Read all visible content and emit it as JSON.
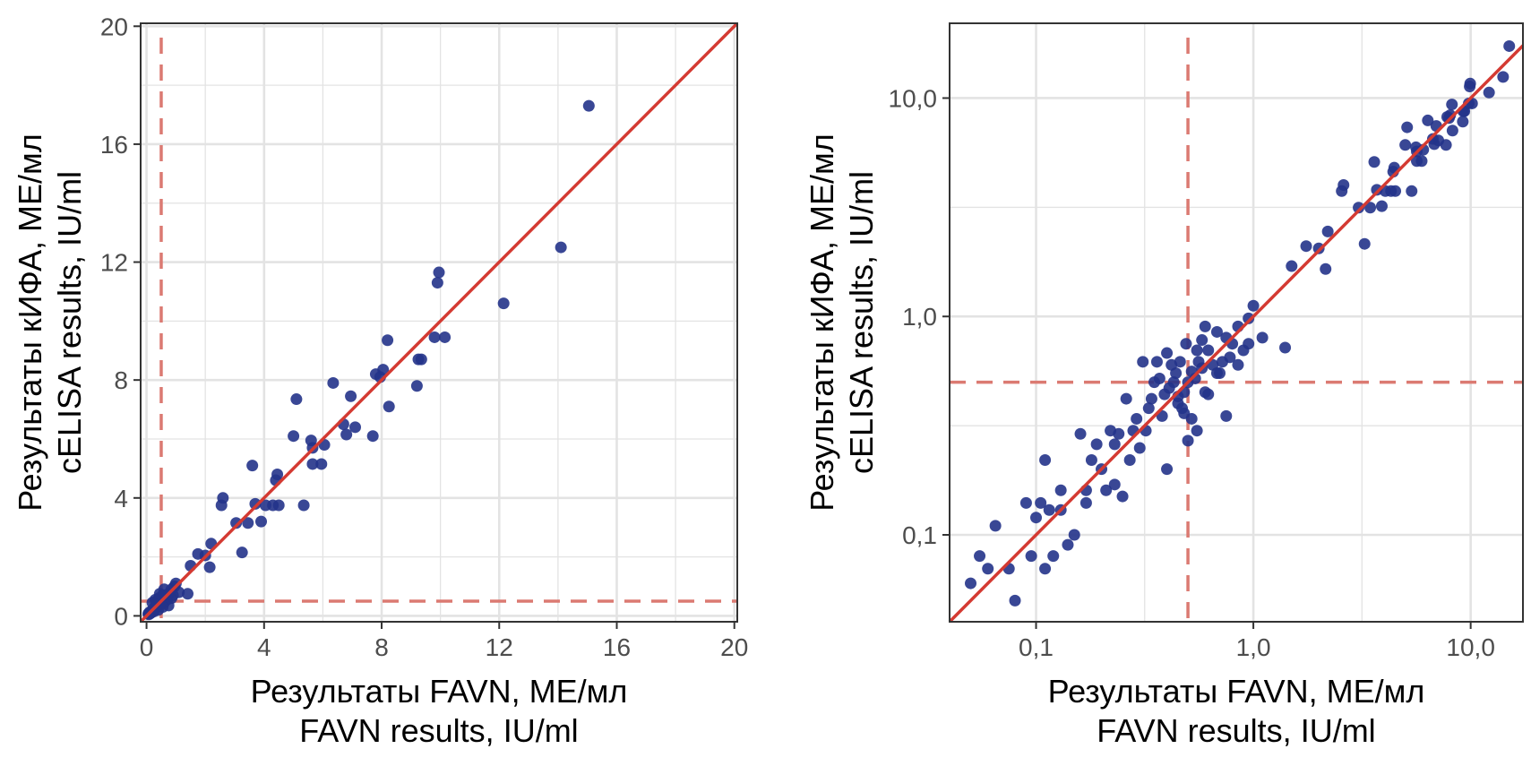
{
  "colors": {
    "point": "#23338a",
    "fit_line": "#d43a32",
    "threshold_line": "#db7a72",
    "grid": "#e3e3e3",
    "panel_border": "#333333",
    "tick_text": "#4d4d4d"
  },
  "chart_data": [
    {
      "type": "scatter",
      "scale": "linear",
      "xlabel_ru": "Результаты FAVN, МЕ/мл",
      "xlabel_en": "FAVN results, IU/ml",
      "ylabel_ru": "Результаты кИФА, МЕ/мл",
      "ylabel_en": "cELISA results, IU/ml",
      "xlim": [
        -0.2,
        20.1
      ],
      "ylim": [
        -0.2,
        20.1
      ],
      "xticks": [
        0,
        4,
        8,
        12,
        16,
        20
      ],
      "yticks": [
        0,
        4,
        8,
        12,
        16,
        20
      ],
      "xtick_labels": [
        "0",
        "4",
        "8",
        "12",
        "16",
        "20"
      ],
      "ytick_labels": [
        "0",
        "4",
        "8",
        "12",
        "16",
        "20"
      ],
      "minor_grid": [
        2,
        6,
        10,
        14,
        18
      ],
      "reference_line": {
        "slope": 1,
        "intercept": 0
      },
      "threshold_x": 0.5,
      "threshold_y": 0.5,
      "points": [
        [
          15.05,
          17.3
        ],
        [
          14.1,
          12.5
        ],
        [
          12.15,
          10.6
        ],
        [
          9.95,
          11.65
        ],
        [
          9.9,
          11.3
        ],
        [
          10.15,
          9.45
        ],
        [
          9.8,
          9.45
        ],
        [
          8.2,
          9.35
        ],
        [
          9.25,
          8.7
        ],
        [
          9.35,
          8.7
        ],
        [
          9.2,
          7.8
        ],
        [
          8.25,
          7.1
        ],
        [
          8.05,
          8.35
        ],
        [
          7.8,
          8.2
        ],
        [
          7.95,
          8.1
        ],
        [
          7.7,
          6.1
        ],
        [
          6.95,
          7.45
        ],
        [
          6.35,
          7.9
        ],
        [
          7.1,
          6.4
        ],
        [
          6.7,
          6.5
        ],
        [
          6.8,
          6.15
        ],
        [
          5.1,
          7.35
        ],
        [
          5.6,
          5.95
        ],
        [
          5.65,
          5.7
        ],
        [
          6.05,
          5.8
        ],
        [
          5.65,
          5.15
        ],
        [
          5.95,
          5.15
        ],
        [
          5.0,
          6.1
        ],
        [
          5.35,
          3.75
        ],
        [
          4.45,
          4.8
        ],
        [
          4.4,
          4.6
        ],
        [
          4.5,
          3.75
        ],
        [
          4.3,
          3.75
        ],
        [
          4.05,
          3.75
        ],
        [
          3.9,
          3.2
        ],
        [
          3.7,
          3.8
        ],
        [
          3.6,
          5.1
        ],
        [
          3.45,
          3.15
        ],
        [
          3.05,
          3.15
        ],
        [
          3.25,
          2.15
        ],
        [
          2.6,
          4.0
        ],
        [
          2.55,
          3.75
        ],
        [
          2.2,
          2.45
        ],
        [
          2.15,
          1.65
        ],
        [
          2.0,
          2.05
        ],
        [
          1.75,
          2.1
        ],
        [
          1.5,
          1.7
        ],
        [
          1.4,
          0.75
        ],
        [
          1.0,
          1.1
        ],
        [
          0.95,
          1.0
        ],
        [
          0.85,
          0.9
        ],
        [
          0.75,
          0.75
        ],
        [
          0.7,
          0.55
        ],
        [
          0.65,
          0.6
        ],
        [
          0.6,
          0.45
        ],
        [
          0.55,
          0.7
        ],
        [
          0.5,
          0.5
        ],
        [
          0.45,
          0.4
        ],
        [
          0.42,
          0.6
        ],
        [
          0.38,
          0.35
        ],
        [
          0.35,
          0.5
        ],
        [
          0.3,
          0.25
        ],
        [
          0.28,
          0.3
        ],
        [
          0.25,
          0.15
        ],
        [
          0.2,
          0.2
        ],
        [
          0.15,
          0.1
        ],
        [
          0.12,
          0.08
        ],
        [
          0.1,
          0.12
        ],
        [
          0.08,
          0.05
        ],
        [
          0.06,
          0.07
        ],
        [
          0.85,
          0.6
        ],
        [
          1.1,
          0.8
        ],
        [
          0.6,
          0.9
        ],
        [
          0.45,
          0.75
        ],
        [
          0.3,
          0.55
        ],
        [
          0.75,
          0.35
        ],
        [
          0.4,
          0.2
        ],
        [
          0.9,
          0.7
        ],
        [
          0.55,
          0.3
        ],
        [
          0.2,
          0.45
        ]
      ]
    },
    {
      "type": "scatter",
      "scale": "log10",
      "xlabel_ru": "Результаты FAVN, МЕ/мл",
      "xlabel_en": "FAVN results, IU/ml",
      "ylabel_ru": "Результаты кИФА, МЕ/мл",
      "ylabel_en": "cELISA results, IU/ml",
      "xlim": [
        0.04,
        17.4
      ],
      "ylim": [
        0.04,
        22.0
      ],
      "xticks": [
        0.1,
        1.0,
        10.0
      ],
      "yticks": [
        0.1,
        1.0,
        10.0
      ],
      "xtick_labels": [
        "0,1",
        "1,0",
        "10,0"
      ],
      "ytick_labels": [
        "0,1",
        "1,0",
        "10,0"
      ],
      "minor_grid": [
        0.316,
        3.16
      ],
      "reference_line": {
        "slope": 1,
        "intercept": 0
      },
      "threshold_x": 0.5,
      "threshold_y": 0.5,
      "points": [
        [
          15.05,
          17.3
        ],
        [
          14.1,
          12.5
        ],
        [
          12.15,
          10.6
        ],
        [
          9.95,
          11.65
        ],
        [
          9.9,
          11.3
        ],
        [
          10.15,
          9.45
        ],
        [
          9.8,
          9.45
        ],
        [
          8.2,
          9.35
        ],
        [
          9.25,
          8.7
        ],
        [
          9.35,
          8.7
        ],
        [
          9.2,
          7.8
        ],
        [
          8.25,
          7.1
        ],
        [
          8.05,
          8.35
        ],
        [
          7.8,
          8.2
        ],
        [
          7.95,
          8.1
        ],
        [
          7.7,
          6.1
        ],
        [
          6.95,
          7.45
        ],
        [
          6.35,
          7.9
        ],
        [
          7.1,
          6.4
        ],
        [
          6.7,
          6.5
        ],
        [
          6.8,
          6.15
        ],
        [
          5.1,
          7.35
        ],
        [
          5.6,
          5.95
        ],
        [
          5.65,
          5.7
        ],
        [
          6.05,
          5.8
        ],
        [
          5.65,
          5.15
        ],
        [
          5.95,
          5.15
        ],
        [
          5.0,
          6.1
        ],
        [
          5.35,
          3.75
        ],
        [
          4.45,
          4.8
        ],
        [
          4.4,
          4.6
        ],
        [
          4.5,
          3.75
        ],
        [
          4.3,
          3.75
        ],
        [
          4.05,
          3.75
        ],
        [
          3.9,
          3.2
        ],
        [
          3.7,
          3.8
        ],
        [
          3.6,
          5.1
        ],
        [
          3.45,
          3.15
        ],
        [
          3.05,
          3.15
        ],
        [
          3.25,
          2.15
        ],
        [
          2.6,
          4.0
        ],
        [
          2.55,
          3.75
        ],
        [
          2.2,
          2.45
        ],
        [
          2.15,
          1.65
        ],
        [
          2.0,
          2.05
        ],
        [
          1.75,
          2.1
        ],
        [
          1.5,
          1.7
        ],
        [
          1.4,
          0.72
        ],
        [
          1.0,
          1.12
        ],
        [
          0.95,
          0.98
        ],
        [
          0.85,
          0.9
        ],
        [
          0.8,
          0.75
        ],
        [
          0.75,
          0.8
        ],
        [
          0.72,
          0.62
        ],
        [
          0.7,
          0.55
        ],
        [
          0.68,
          0.85
        ],
        [
          0.65,
          0.6
        ],
        [
          0.62,
          0.7
        ],
        [
          0.6,
          0.45
        ],
        [
          0.58,
          0.78
        ],
        [
          0.56,
          0.62
        ],
        [
          0.55,
          0.7
        ],
        [
          0.54,
          0.52
        ],
        [
          0.52,
          0.56
        ],
        [
          0.5,
          0.5
        ],
        [
          0.49,
          0.75
        ],
        [
          0.48,
          0.45
        ],
        [
          0.47,
          0.38
        ],
        [
          0.46,
          0.62
        ],
        [
          0.45,
          0.4
        ],
        [
          0.44,
          0.55
        ],
        [
          0.43,
          0.5
        ],
        [
          0.42,
          0.6
        ],
        [
          0.41,
          0.47
        ],
        [
          0.4,
          0.68
        ],
        [
          0.39,
          0.44
        ],
        [
          0.38,
          0.35
        ],
        [
          0.37,
          0.52
        ],
        [
          0.36,
          0.62
        ],
        [
          0.35,
          0.5
        ],
        [
          0.34,
          0.42
        ],
        [
          0.33,
          0.38
        ],
        [
          0.32,
          0.3
        ],
        [
          0.31,
          0.62
        ],
        [
          0.3,
          0.25
        ],
        [
          0.29,
          0.34
        ],
        [
          0.28,
          0.3
        ],
        [
          0.27,
          0.22
        ],
        [
          0.26,
          0.42
        ],
        [
          0.25,
          0.15
        ],
        [
          0.24,
          0.29
        ],
        [
          0.23,
          0.26
        ],
        [
          0.22,
          0.3
        ],
        [
          0.21,
          0.16
        ],
        [
          0.2,
          0.2
        ],
        [
          0.19,
          0.26
        ],
        [
          0.18,
          0.22
        ],
        [
          0.17,
          0.14
        ],
        [
          0.16,
          0.29
        ],
        [
          0.15,
          0.1
        ],
        [
          0.14,
          0.09
        ],
        [
          0.13,
          0.16
        ],
        [
          0.12,
          0.08
        ],
        [
          0.115,
          0.13
        ],
        [
          0.11,
          0.22
        ],
        [
          0.105,
          0.14
        ],
        [
          0.1,
          0.12
        ],
        [
          0.095,
          0.08
        ],
        [
          0.09,
          0.14
        ],
        [
          0.08,
          0.05
        ],
        [
          0.075,
          0.07
        ],
        [
          0.065,
          0.11
        ],
        [
          0.06,
          0.07
        ],
        [
          0.055,
          0.08
        ],
        [
          0.05,
          0.06
        ],
        [
          0.11,
          0.07
        ],
        [
          0.13,
          0.13
        ],
        [
          0.17,
          0.16
        ],
        [
          0.23,
          0.17
        ],
        [
          0.4,
          0.2
        ],
        [
          0.45,
          0.43
        ],
        [
          0.5,
          0.27
        ],
        [
          0.55,
          0.3
        ],
        [
          0.6,
          0.9
        ],
        [
          0.75,
          0.35
        ],
        [
          0.85,
          0.6
        ],
        [
          0.9,
          0.7
        ],
        [
          1.1,
          0.8
        ],
        [
          0.48,
          0.36
        ],
        [
          0.52,
          0.34
        ],
        [
          0.62,
          0.44
        ],
        [
          0.68,
          0.55
        ],
        [
          0.78,
          0.65
        ],
        [
          0.95,
          0.75
        ],
        [
          0.58,
          0.58
        ]
      ]
    }
  ]
}
